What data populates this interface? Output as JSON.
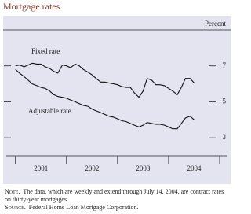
{
  "chart_data": {
    "type": "line",
    "title": "Mortgage rates",
    "y_label": "Percent",
    "x": [
      2001.0,
      2001.08,
      2001.17,
      2001.25,
      2001.33,
      2001.42,
      2001.5,
      2001.58,
      2001.67,
      2001.75,
      2001.83,
      2001.92,
      2002.0,
      2002.08,
      2002.17,
      2002.25,
      2002.33,
      2002.42,
      2002.5,
      2002.58,
      2002.67,
      2002.75,
      2002.83,
      2002.92,
      2003.0,
      2003.08,
      2003.17,
      2003.25,
      2003.33,
      2003.42,
      2003.5,
      2003.58,
      2003.67,
      2003.75,
      2003.83,
      2003.92,
      2004.0,
      2004.08,
      2004.17,
      2004.25,
      2004.33,
      2004.42,
      2004.5
    ],
    "series": [
      {
        "name": "Fixed rate",
        "color": "#111111",
        "values": [
          7.0,
          7.05,
          6.95,
          7.05,
          7.15,
          7.1,
          7.1,
          6.95,
          6.85,
          6.7,
          6.6,
          7.05,
          7.0,
          6.9,
          7.1,
          7.0,
          6.8,
          6.65,
          6.5,
          6.3,
          6.1,
          6.1,
          6.05,
          6.0,
          5.95,
          5.85,
          5.8,
          5.8,
          5.5,
          5.25,
          5.6,
          6.3,
          6.2,
          5.95,
          5.95,
          5.9,
          5.75,
          5.6,
          5.4,
          5.8,
          6.3,
          6.3,
          6.05
        ]
      },
      {
        "name": "Adjustable rate",
        "color": "#111111",
        "values": [
          6.8,
          6.6,
          6.4,
          6.2,
          6.0,
          5.9,
          5.8,
          5.75,
          5.6,
          5.4,
          5.3,
          5.25,
          5.2,
          5.1,
          5.0,
          4.9,
          4.8,
          4.75,
          4.6,
          4.5,
          4.4,
          4.3,
          4.2,
          4.15,
          4.05,
          3.95,
          3.9,
          3.8,
          3.7,
          3.6,
          3.7,
          3.85,
          3.8,
          3.75,
          3.75,
          3.7,
          3.6,
          3.5,
          3.5,
          3.8,
          4.1,
          4.2,
          4.0
        ]
      }
    ],
    "xlim": [
      2000.82,
      2005.0
    ],
    "ylim": [
      2,
      9
    ],
    "yticks": [
      3,
      5,
      7
    ],
    "xticks": [
      {
        "value": 2001.5,
        "label": "2001"
      },
      {
        "value": 2002.5,
        "label": "2002"
      },
      {
        "value": 2003.5,
        "label": "2003"
      },
      {
        "value": 2004.5,
        "label": "2004"
      }
    ],
    "x_tick_marks": [
      2001,
      2002,
      2003,
      2004,
      2005
    ],
    "background": "#e4e4f0"
  },
  "notes": {
    "note_label": "Note.",
    "note": "The data, which are weekly and extend through July 14, 2004, are contract rates on thirty-year mortgages.",
    "source_label": "Source.",
    "source": "Federal Home Loan Mortgage Corporation."
  }
}
